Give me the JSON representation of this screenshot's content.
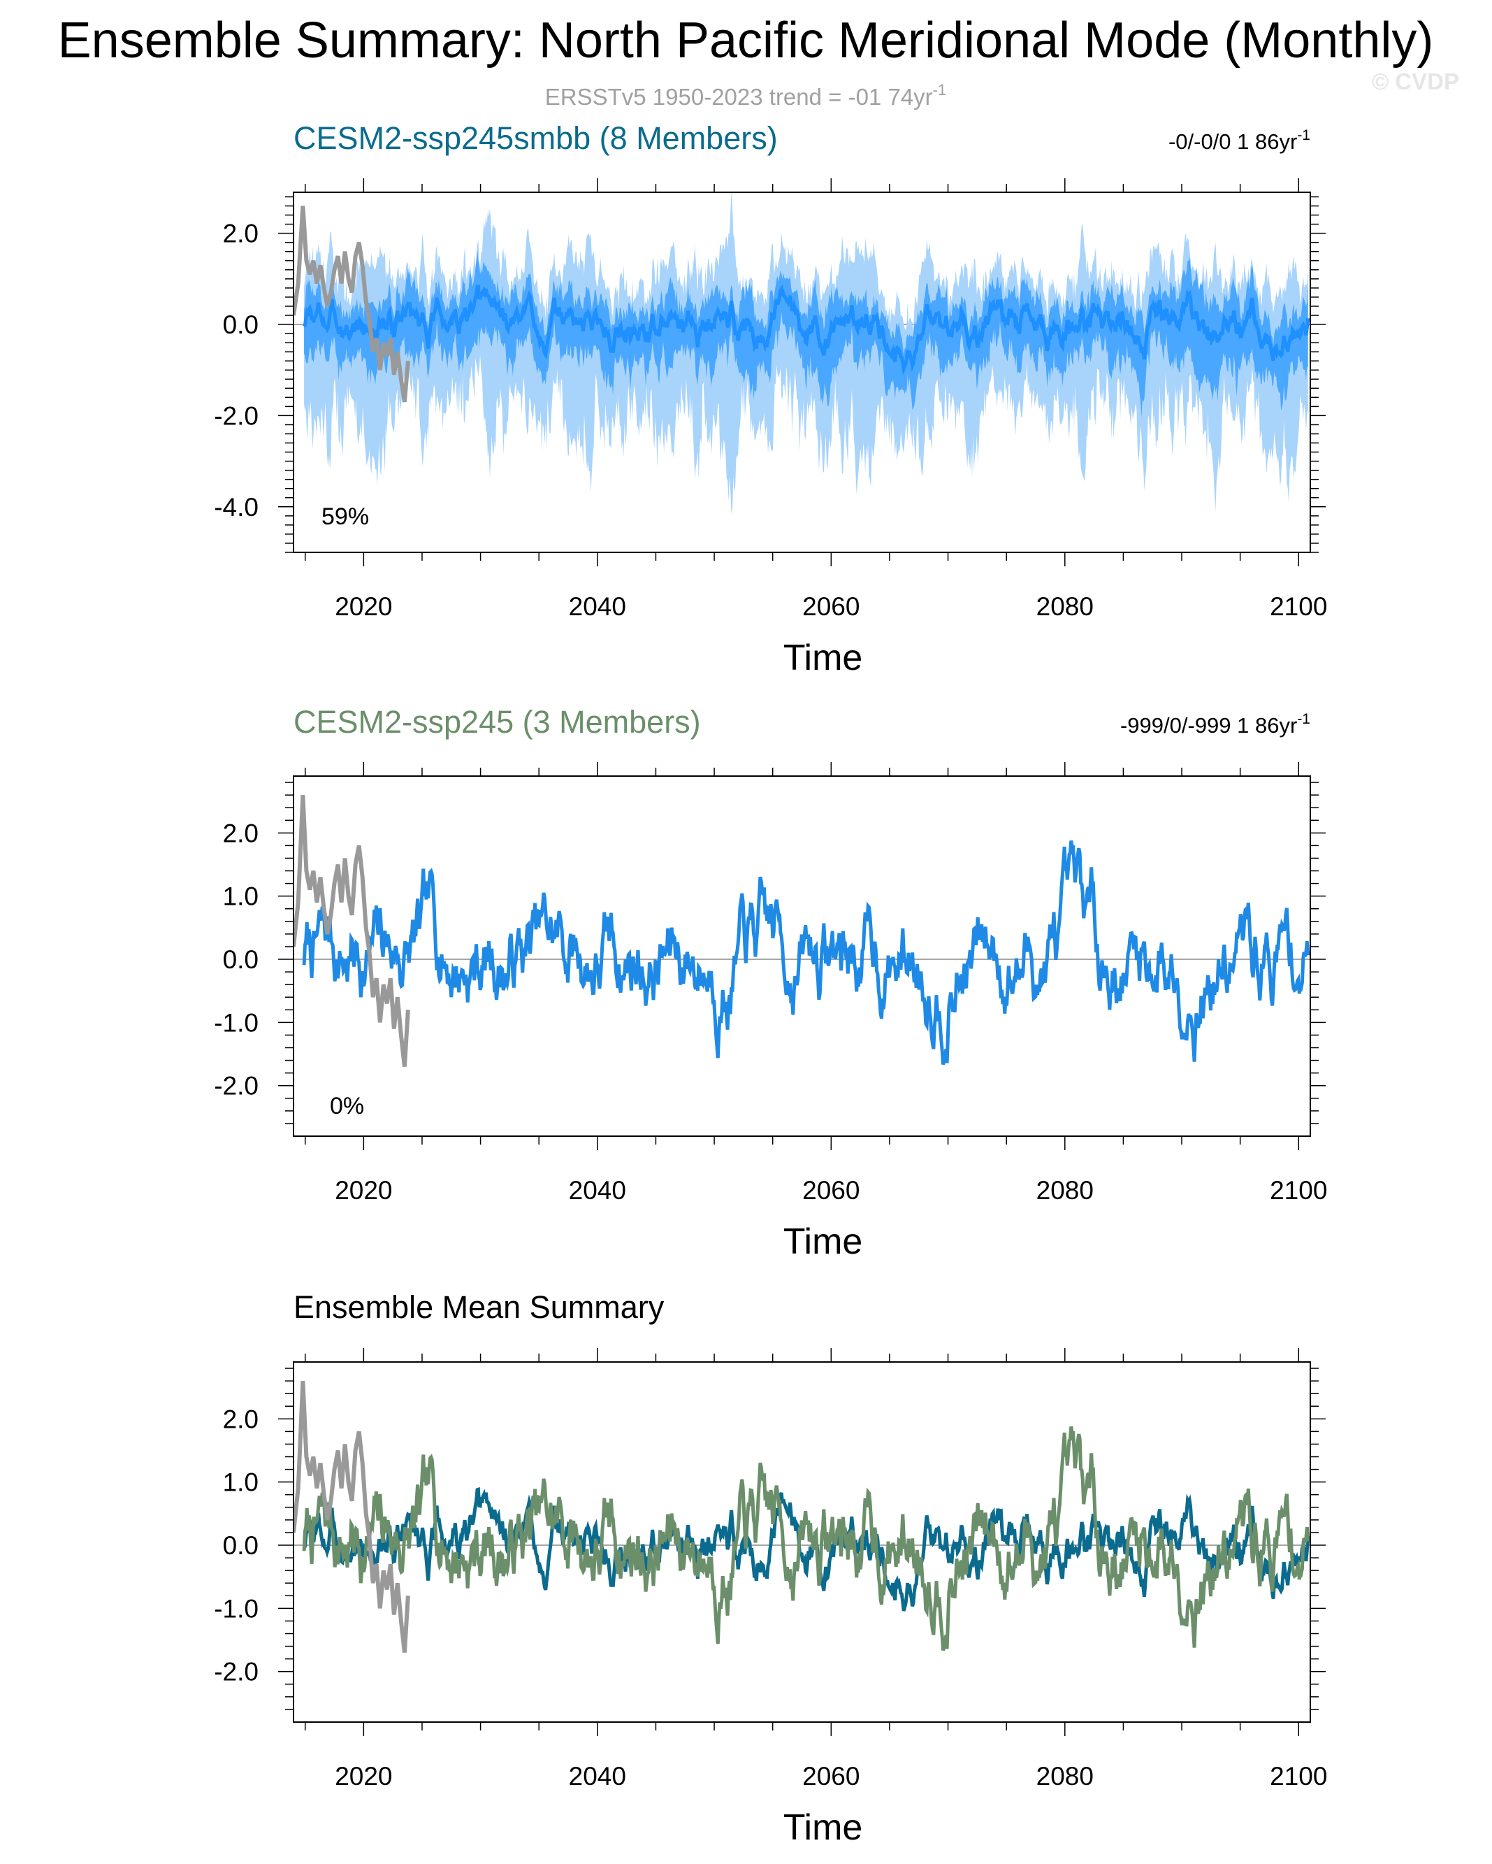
{
  "title": "Ensemble Summary: North Pacific Meridional Mode (Monthly)",
  "subtitle": {
    "text": "ERSSTv5 1950-2023 trend = -01 74yr",
    "sup": "-1"
  },
  "watermark": "© CVDP",
  "colors": {
    "obs": "#999999",
    "smbb_mean": "#1e90ff",
    "smbb_inner": "#4aa7ff",
    "smbb_outer": "#a8d4fb",
    "smbb_title": "#0a6b8e",
    "ssp245_title": "#6a8f6a",
    "ssp245_line": "#1e8ae6",
    "em_smbb": "#0a6b8e",
    "em_ssp245": "#6a8f6a"
  },
  "chart_data": [
    {
      "type": "area",
      "panel": "top",
      "title": "CESM2-ssp245smbb (8 Members)",
      "trend_text": "-0/-0/0 1 86yr",
      "trend_sup": "-1",
      "pct_label": "59%",
      "xlabel": "Time",
      "ylabel": "",
      "xlim": [
        2014,
        2101
      ],
      "ylim": [
        -5.0,
        2.9
      ],
      "x_ticks": [
        2020,
        2040,
        2060,
        2080,
        2100
      ],
      "y_ticks": [
        2.0,
        0.0,
        -2.0,
        -4.0
      ],
      "y_tick_labels": [
        "2.0",
        "0.0",
        "-2.0",
        "-4.0"
      ],
      "series": [
        {
          "kind": "outer_range",
          "description_seed": 11,
          "mean_seed": 3,
          "spread": 1.6
        },
        {
          "kind": "inner_range",
          "description_seed": 12,
          "mean_seed": 3,
          "spread": 0.75
        },
        {
          "kind": "ensemble_mean",
          "mean_seed": 3,
          "amp": 0.3
        },
        {
          "kind": "obs"
        }
      ]
    },
    {
      "type": "line",
      "panel": "middle",
      "title": "CESM2-ssp245 (3 Members)",
      "trend_text": "-999/0/-999 1 86yr",
      "trend_sup": "-1",
      "pct_label": "0%",
      "xlabel": "Time",
      "ylabel": "",
      "xlim": [
        2014,
        2101
      ],
      "ylim": [
        -2.8,
        2.9
      ],
      "x_ticks": [
        2020,
        2040,
        2060,
        2080,
        2100
      ],
      "y_ticks": [
        2.0,
        1.0,
        0.0,
        -1.0,
        -2.0
      ],
      "y_tick_labels": [
        "2.0",
        "1.0",
        "0.0",
        "-1.0",
        "-2.0"
      ],
      "series": [
        {
          "kind": "member_line",
          "mean_seed": 7,
          "amp": 0.55
        },
        {
          "kind": "obs"
        }
      ]
    },
    {
      "type": "line",
      "panel": "bottom",
      "title": "Ensemble Mean Summary",
      "xlabel": "Time",
      "ylabel": "",
      "xlim": [
        2014,
        2101
      ],
      "ylim": [
        -2.8,
        2.9
      ],
      "x_ticks": [
        2020,
        2040,
        2060,
        2080,
        2100
      ],
      "y_ticks": [
        2.0,
        1.0,
        0.0,
        -1.0,
        -2.0
      ],
      "y_tick_labels": [
        "2.0",
        "1.0",
        "0.0",
        "-1.0",
        "-2.0"
      ],
      "series": [
        {
          "kind": "em_smbb",
          "mean_seed": 3,
          "amp": 0.32
        },
        {
          "kind": "em_ssp245",
          "mean_seed": 7,
          "amp": 0.55
        },
        {
          "kind": "obs"
        }
      ]
    }
  ],
  "obs_series": {
    "x": [
      2014.0,
      2014.4,
      2014.8,
      2015.1,
      2015.4,
      2015.7,
      2016.0,
      2016.3,
      2016.6,
      2016.9,
      2017.2,
      2017.5,
      2017.8,
      2018.1,
      2018.4,
      2018.7,
      2019.0,
      2019.3,
      2019.6,
      2019.9,
      2020.2,
      2020.5,
      2020.8,
      2021.1,
      2021.4,
      2021.7,
      2022.0,
      2022.3,
      2022.6,
      2022.9,
      2023.2,
      2023.5,
      2023.8
    ],
    "y": [
      0.2,
      0.9,
      2.6,
      1.4,
      1.1,
      1.4,
      0.9,
      1.3,
      0.8,
      0.4,
      0.7,
      1.2,
      1.5,
      0.9,
      1.6,
      1.0,
      0.7,
      1.5,
      1.8,
      1.3,
      0.5,
      0.1,
      -0.6,
      -0.3,
      -1.0,
      -0.4,
      -0.7,
      -0.3,
      -1.1,
      -0.6,
      -1.2,
      -1.7,
      -0.8
    ]
  }
}
